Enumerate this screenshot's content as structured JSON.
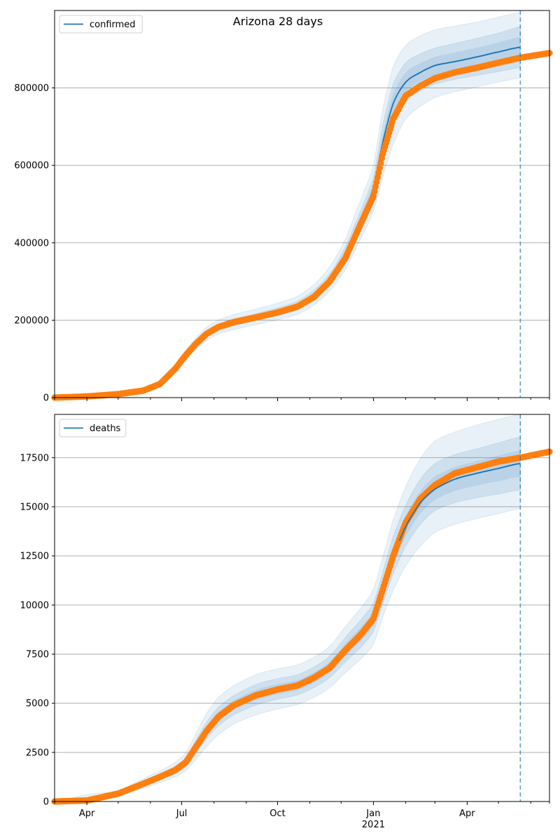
{
  "title": "Arizona 28 days",
  "colors": {
    "model": "#1f77b4",
    "observed": "#ff7f0e",
    "band": "#1f77b4",
    "grid": "#b0b0b0",
    "forecast_line": "#1f77b4"
  },
  "x_axis": {
    "month_labels": [
      "Apr",
      "Jul",
      "Oct",
      "Jan",
      "Apr"
    ],
    "year_label": "2021"
  },
  "forecast_start": "2021-05-22",
  "chart_data": [
    {
      "type": "line",
      "legend": "confirmed",
      "xlim": [
        "2020-03-01",
        "2021-06-19"
      ],
      "ylim": [
        0,
        1000000
      ],
      "yticks": [
        0,
        200000,
        400000,
        600000,
        800000
      ],
      "ytick_labels": [
        "0",
        "200000",
        "400000",
        "600000",
        "800000"
      ],
      "grid": "horizontal",
      "legend_position": "top-left",
      "observed": {
        "x": [
          "2020-03-01",
          "2020-04-01",
          "2020-05-01",
          "2020-05-25",
          "2020-06-10",
          "2020-06-25",
          "2020-07-05",
          "2020-07-15",
          "2020-07-25",
          "2020-08-05",
          "2020-08-20",
          "2020-09-10",
          "2020-10-01",
          "2020-10-20",
          "2020-11-05",
          "2020-11-20",
          "2020-12-05",
          "2020-12-20",
          "2021-01-01",
          "2021-01-10",
          "2021-01-20",
          "2021-02-01",
          "2021-02-15",
          "2021-03-01",
          "2021-03-20",
          "2021-04-10",
          "2021-05-01",
          "2021-05-22",
          "2021-06-19"
        ],
        "y": [
          0,
          3000,
          9000,
          18000,
          35000,
          75000,
          110000,
          140000,
          165000,
          182000,
          195000,
          207000,
          220000,
          235000,
          260000,
          300000,
          360000,
          450000,
          520000,
          630000,
          720000,
          780000,
          805000,
          825000,
          840000,
          852000,
          865000,
          878000,
          890000
        ]
      },
      "model": {
        "x": [
          "2020-03-01",
          "2020-04-01",
          "2020-05-01",
          "2020-05-25",
          "2020-06-10",
          "2020-06-25",
          "2020-07-05",
          "2020-07-15",
          "2020-07-25",
          "2020-08-05",
          "2020-08-20",
          "2020-09-10",
          "2020-10-01",
          "2020-10-20",
          "2020-11-05",
          "2020-11-20",
          "2020-12-05",
          "2020-12-20",
          "2021-01-01",
          "2021-01-10",
          "2021-01-20",
          "2021-02-01",
          "2021-02-15",
          "2021-03-01",
          "2021-03-20",
          "2021-04-10",
          "2021-05-01",
          "2021-05-22"
        ],
        "y": [
          0,
          3000,
          9000,
          18000,
          35000,
          75000,
          110000,
          140000,
          165000,
          182000,
          195000,
          208000,
          222000,
          238000,
          265000,
          305000,
          370000,
          460000,
          540000,
          660000,
          760000,
          815000,
          840000,
          858000,
          868000,
          880000,
          893000,
          905000
        ]
      },
      "bands": [
        {
          "level": "inner",
          "low": [
            0,
            2500,
            8000,
            16000,
            32000,
            70000,
            104000,
            133000,
            157000,
            174000,
            186000,
            199000,
            212000,
            227000,
            252000,
            290000,
            350000,
            435000,
            510000,
            615000,
            705000,
            765000,
            792000,
            810000,
            822000,
            832000,
            842000,
            852000
          ],
          "high": [
            0,
            3500,
            10000,
            20000,
            38000,
            80000,
            116000,
            147000,
            173000,
            190000,
            204000,
            217000,
            232000,
            249000,
            278000,
            320000,
            390000,
            485000,
            570000,
            705000,
            810000,
            865000,
            888000,
            903000,
            915000,
            928000,
            942000,
            958000
          ]
        },
        {
          "level": "outer",
          "low": [
            0,
            2000,
            7000,
            14000,
            29000,
            64000,
            97000,
            125000,
            148000,
            164000,
            176000,
            188000,
            201000,
            215000,
            239000,
            275000,
            330000,
            410000,
            480000,
            570000,
            655000,
            720000,
            752000,
            775000,
            790000,
            802000,
            815000,
            825000
          ],
          "high": [
            0,
            4000,
            11000,
            22000,
            41000,
            86000,
            123000,
            155000,
            182000,
            200000,
            215000,
            229000,
            244000,
            262000,
            292000,
            338000,
            410000,
            512000,
            600000,
            745000,
            855000,
            910000,
            935000,
            950000,
            960000,
            970000,
            983000,
            995000
          ]
        }
      ]
    },
    {
      "type": "line",
      "legend": "deaths",
      "xlim": [
        "2020-03-01",
        "2021-06-19"
      ],
      "ylim": [
        0,
        19700
      ],
      "yticks": [
        0,
        2500,
        5000,
        7500,
        10000,
        12500,
        15000,
        17500
      ],
      "ytick_labels": [
        "0",
        "2500",
        "5000",
        "7500",
        "10000",
        "12500",
        "15000",
        "17500"
      ],
      "grid": "horizontal",
      "legend_position": "top-left",
      "observed": {
        "x": [
          "2020-03-01",
          "2020-04-01",
          "2020-05-01",
          "2020-05-25",
          "2020-06-10",
          "2020-06-25",
          "2020-07-05",
          "2020-07-15",
          "2020-07-25",
          "2020-08-05",
          "2020-08-20",
          "2020-09-10",
          "2020-10-01",
          "2020-10-20",
          "2020-11-05",
          "2020-11-20",
          "2020-12-05",
          "2020-12-20",
          "2021-01-01",
          "2021-01-10",
          "2021-01-20",
          "2021-02-01",
          "2021-02-15",
          "2021-03-01",
          "2021-03-20",
          "2021-04-10",
          "2021-05-01",
          "2021-05-22",
          "2021-06-19"
        ],
        "y": [
          0,
          50,
          400,
          900,
          1250,
          1600,
          2000,
          2800,
          3600,
          4300,
          4900,
          5400,
          5700,
          5900,
          6300,
          6800,
          7700,
          8500,
          9300,
          10800,
          12500,
          14200,
          15400,
          16100,
          16700,
          17000,
          17300,
          17500,
          17800
        ]
      },
      "model": {
        "x": [
          "2020-03-01",
          "2020-04-01",
          "2020-05-01",
          "2020-05-25",
          "2020-06-10",
          "2020-06-25",
          "2020-07-05",
          "2020-07-15",
          "2020-07-25",
          "2020-08-05",
          "2020-08-20",
          "2020-09-10",
          "2020-10-01",
          "2020-10-20",
          "2020-11-05",
          "2020-11-20",
          "2020-12-05",
          "2020-12-20",
          "2021-01-01",
          "2021-01-10",
          "2021-01-20",
          "2021-02-01",
          "2021-02-15",
          "2021-03-01",
          "2021-03-20",
          "2021-04-10",
          "2021-05-01",
          "2021-05-22"
        ],
        "y": [
          0,
          50,
          400,
          900,
          1250,
          1600,
          2000,
          2800,
          3600,
          4300,
          4900,
          5400,
          5700,
          5900,
          6300,
          6800,
          7700,
          8500,
          9300,
          10800,
          12500,
          14000,
          15200,
          15900,
          16400,
          16700,
          16950,
          17200
        ]
      },
      "bands": [
        {
          "level": "inner",
          "low": [
            0,
            30,
            320,
            780,
            1100,
            1420,
            1780,
            2480,
            3200,
            3850,
            4420,
            4900,
            5200,
            5420,
            5800,
            6300,
            7100,
            7850,
            8650,
            10100,
            11600,
            13000,
            14100,
            14800,
            15200,
            15450,
            15650,
            15850
          ],
          "high": [
            0,
            80,
            480,
            1020,
            1400,
            1800,
            2250,
            3150,
            4050,
            4800,
            5400,
            5950,
            6250,
            6450,
            6850,
            7400,
            8350,
            9250,
            10100,
            11700,
            13500,
            15100,
            16400,
            17200,
            17650,
            17950,
            18250,
            18550
          ]
        },
        {
          "level": "outer",
          "low": [
            0,
            0,
            250,
            660,
            950,
            1250,
            1560,
            2170,
            2800,
            3400,
            3950,
            4400,
            4700,
            4930,
            5300,
            5800,
            6550,
            7250,
            8000,
            9400,
            10750,
            12000,
            13000,
            13700,
            14100,
            14400,
            14650,
            14900
          ],
          "high": [
            0,
            350,
            560,
            1150,
            1550,
            2000,
            2500,
            3500,
            4500,
            5300,
            5900,
            6450,
            6750,
            6950,
            7350,
            7900,
            8900,
            9850,
            10800,
            12450,
            14350,
            16050,
            17450,
            18350,
            18800,
            19150,
            19450,
            19700
          ]
        }
      ]
    }
  ]
}
